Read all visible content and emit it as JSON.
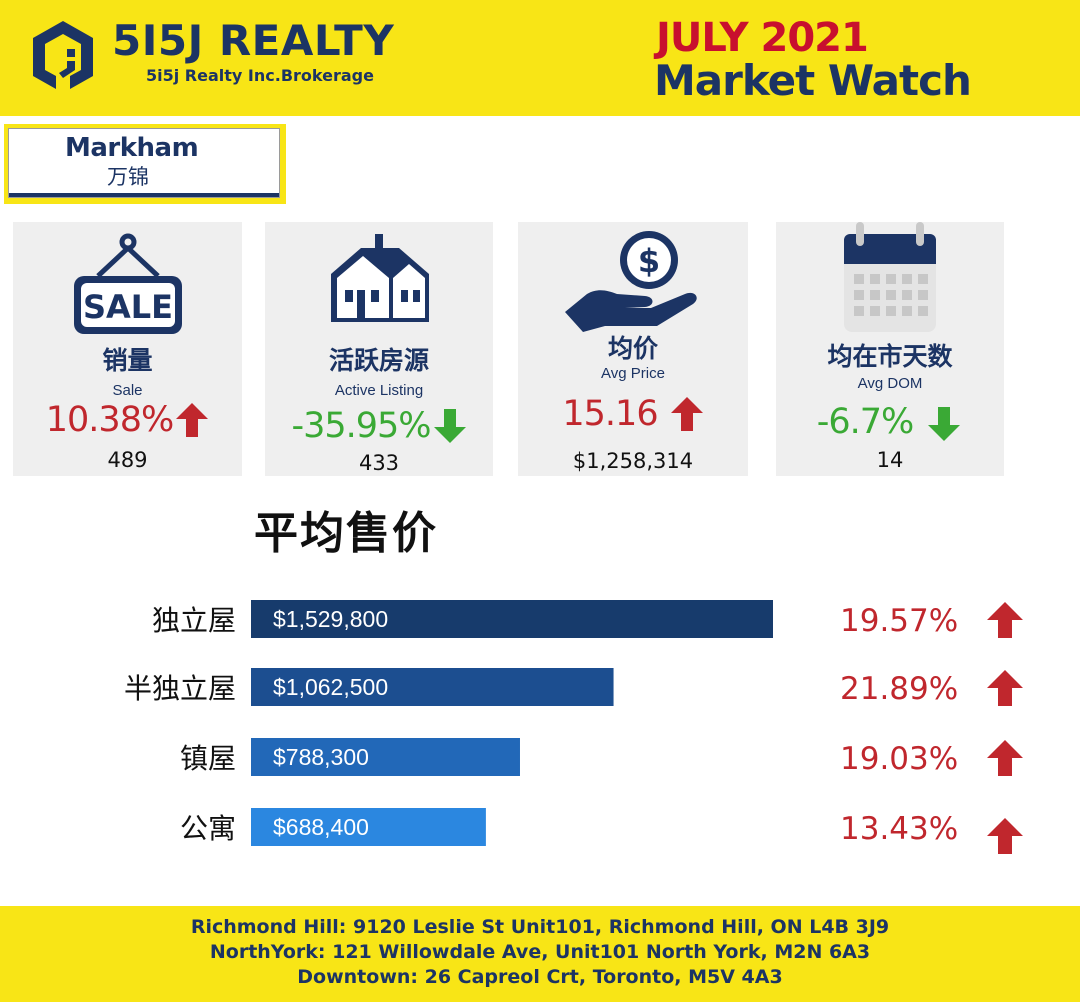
{
  "brand": {
    "name": "5I5J REALTY",
    "subtitle": "5i5j Realty Inc.Brokerage",
    "primary_color": "#1c3464",
    "accent_yellow": "#f8e516"
  },
  "report": {
    "month": "JULY 2021",
    "title": "Market Watch"
  },
  "city": {
    "name_en": "Markham",
    "name_zh": "万锦"
  },
  "stats": [
    {
      "icon": "sale-sign-icon",
      "title_zh": "销量",
      "title_en": "Sale",
      "change": "10.38%",
      "direction": "up",
      "value": "489"
    },
    {
      "icon": "house-icon",
      "title_zh": "活跃房源",
      "title_en": "Active Listing",
      "change": "-35.95%",
      "direction": "down",
      "value": "433"
    },
    {
      "icon": "dollar-hand-icon",
      "title_zh": "均价",
      "title_en": "Avg Price",
      "change": "15.16",
      "direction": "up",
      "value": "$1,258,314"
    },
    {
      "icon": "calendar-icon",
      "title_zh": "均在市天数",
      "title_en": "Avg DOM",
      "change": "-6.7%",
      "direction": "down",
      "value": "14"
    }
  ],
  "colors": {
    "up": "#c0272d",
    "down": "#3aa935"
  },
  "chart_data": {
    "type": "bar",
    "orientation": "horizontal",
    "title": "平均售价",
    "categories": [
      "独立屋",
      "半独立屋",
      "镇屋",
      "公寓"
    ],
    "values": [
      1529800,
      1062500,
      788300,
      688400
    ],
    "value_labels": [
      "$1,529,800",
      "$1,062,500",
      "$788,300",
      "$688,400"
    ],
    "changes": [
      "19.57%",
      "21.89%",
      "19.03%",
      "13.43%"
    ],
    "change_direction": [
      "up",
      "up",
      "up",
      "up"
    ],
    "bar_colors": [
      "#173b6c",
      "#1c4e90",
      "#2268b8",
      "#2b87e0"
    ],
    "legend": "none",
    "grid": false
  },
  "footer": {
    "lines": [
      "Richmond Hill: 9120 Leslie St Unit101, Richmond Hill, ON L4B 3J9",
      "NorthYork: 121 Willowdale Ave, Unit101 North York, M2N 6A3",
      "Downtown: 26 Capreol Crt, Toronto, M5V 4A3"
    ]
  }
}
